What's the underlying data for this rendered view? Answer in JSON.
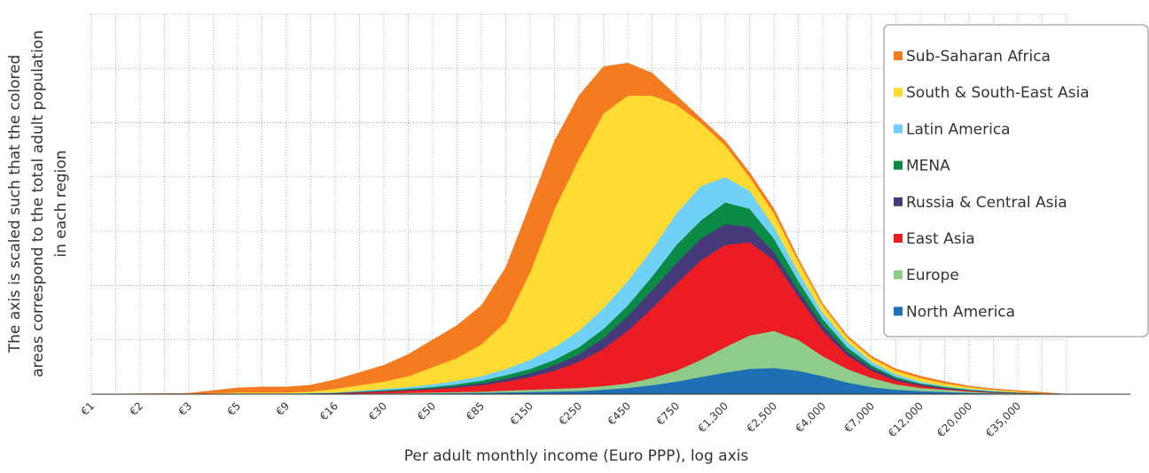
{
  "chart_data": {
    "type": "stacked-area",
    "x_label": "Per adult monthly income (Euro PPP), log axis",
    "y_label": [
      "The axis is scaled such that the colored",
      "areas correspond to the total adult population",
      "in each region"
    ],
    "x_scale": "log",
    "categories": [
      "€1",
      null,
      "€2",
      null,
      "€3",
      null,
      "€5",
      null,
      "€9",
      null,
      "€16",
      null,
      "€30",
      null,
      "€50",
      null,
      "€85",
      null,
      "€150",
      null,
      "€250",
      null,
      "€450",
      null,
      "€750",
      null,
      "€1,300",
      null,
      "€2,500",
      null,
      "€4,000",
      null,
      "€7,000",
      null,
      "€12,000",
      null,
      "€20,000",
      null,
      "€35,000",
      null,
      null
    ],
    "ylim": [
      0,
      420
    ],
    "yticks": [
      0,
      60,
      120,
      180,
      240,
      300,
      360,
      420
    ],
    "grid": true,
    "legend": "top-right",
    "series": [
      {
        "name": "North America",
        "color": "#1f6fb5",
        "values": [
          0,
          0,
          0,
          0,
          0,
          0,
          0,
          0,
          0,
          0,
          0.2,
          0.4,
          0.6,
          0.8,
          1,
          1.3,
          1.6,
          2,
          2.5,
          3,
          3.5,
          5,
          7,
          10,
          14,
          19,
          24,
          28,
          29,
          26,
          20,
          13,
          8,
          5,
          3.5,
          2.5,
          1.5,
          1,
          0.6,
          0.2,
          0
        ]
      },
      {
        "name": "Europe",
        "color": "#8fcc8c",
        "values": [
          0,
          0,
          0,
          0,
          0,
          0,
          0,
          0,
          0,
          0,
          0.3,
          0.4,
          0.4,
          0.7,
          1,
          1.2,
          1.4,
          2,
          2.5,
          3,
          3.5,
          4,
          5,
          8,
          12,
          19,
          28,
          37,
          41,
          34,
          22,
          15,
          10,
          6,
          3.5,
          2.5,
          1.5,
          0.5,
          0.4,
          0.2,
          0
        ]
      },
      {
        "name": "East Asia",
        "color": "#ec1c24",
        "values": [
          0,
          0,
          0,
          0,
          0,
          0.3,
          0.3,
          0.3,
          0.3,
          0.6,
          0.5,
          1.2,
          2,
          2.5,
          3.5,
          5,
          7,
          10,
          14,
          20,
          29,
          41,
          58,
          77,
          96,
          110,
          113,
          103,
          78,
          48,
          28,
          15,
          8,
          4,
          2.5,
          1,
          1,
          0.5,
          0.2,
          0.1,
          0
        ]
      },
      {
        "name": "Russia & Central Asia",
        "color": "#45397a",
        "values": [
          0,
          0,
          0,
          0,
          0,
          0,
          0,
          0,
          0,
          0.2,
          0.2,
          0.5,
          0.5,
          1,
          1,
          1.5,
          2,
          3,
          4,
          6,
          8,
          12,
          16,
          20,
          23,
          24,
          23,
          17,
          9,
          7,
          6,
          4,
          3,
          2,
          1.5,
          1,
          0.5,
          0.5,
          0.3,
          0.2,
          0
        ]
      },
      {
        "name": "MENA",
        "color": "#0a8a45",
        "values": [
          0,
          0,
          0,
          0,
          0,
          0.2,
          0.2,
          0.2,
          0.2,
          0.2,
          0.3,
          0.5,
          1,
          1,
          1.5,
          2,
          3,
          4,
          5,
          6,
          8,
          10,
          12,
          15,
          20,
          20,
          24,
          20,
          15,
          10,
          7,
          5,
          3,
          2,
          1,
          1,
          0.5,
          0.5,
          0.5,
          0.3,
          0
        ]
      },
      {
        "name": "Latin America",
        "color": "#70d0f5",
        "values": [
          0,
          0,
          0,
          0,
          0,
          0,
          0.5,
          0.5,
          0.5,
          0.5,
          0.5,
          1,
          1.5,
          2,
          3,
          4,
          5,
          7,
          10,
          14,
          18,
          23,
          27,
          30,
          35,
          38,
          28,
          20,
          13,
          10,
          7,
          6,
          4,
          3,
          2,
          1,
          1,
          1,
          0,
          0,
          0
        ]
      },
      {
        "name": "South & South-East Asia",
        "color": "#fddb33",
        "values": [
          0,
          0,
          0,
          0,
          0,
          0.5,
          1,
          1,
          1,
          1.5,
          4,
          6,
          8,
          12,
          19,
          25,
          35,
          52,
          97,
          153,
          190,
          215,
          205,
          170,
          120,
          70,
          35,
          15,
          15,
          12,
          8,
          5,
          4,
          4,
          4,
          3,
          2,
          1,
          1,
          0,
          0
        ]
      },
      {
        "name": "Sub-Saharan Africa",
        "color": "#f47b20",
        "values": [
          0,
          0.2,
          0.5,
          0.7,
          1,
          3,
          5,
          6,
          6,
          7,
          10,
          14,
          18,
          24,
          30,
          36,
          43,
          60,
          75,
          75,
          70,
          52,
          36,
          25,
          10,
          5,
          5,
          5,
          5,
          3,
          2,
          2,
          2,
          2,
          2,
          2,
          1,
          1,
          1,
          1,
          0
        ]
      }
    ]
  }
}
